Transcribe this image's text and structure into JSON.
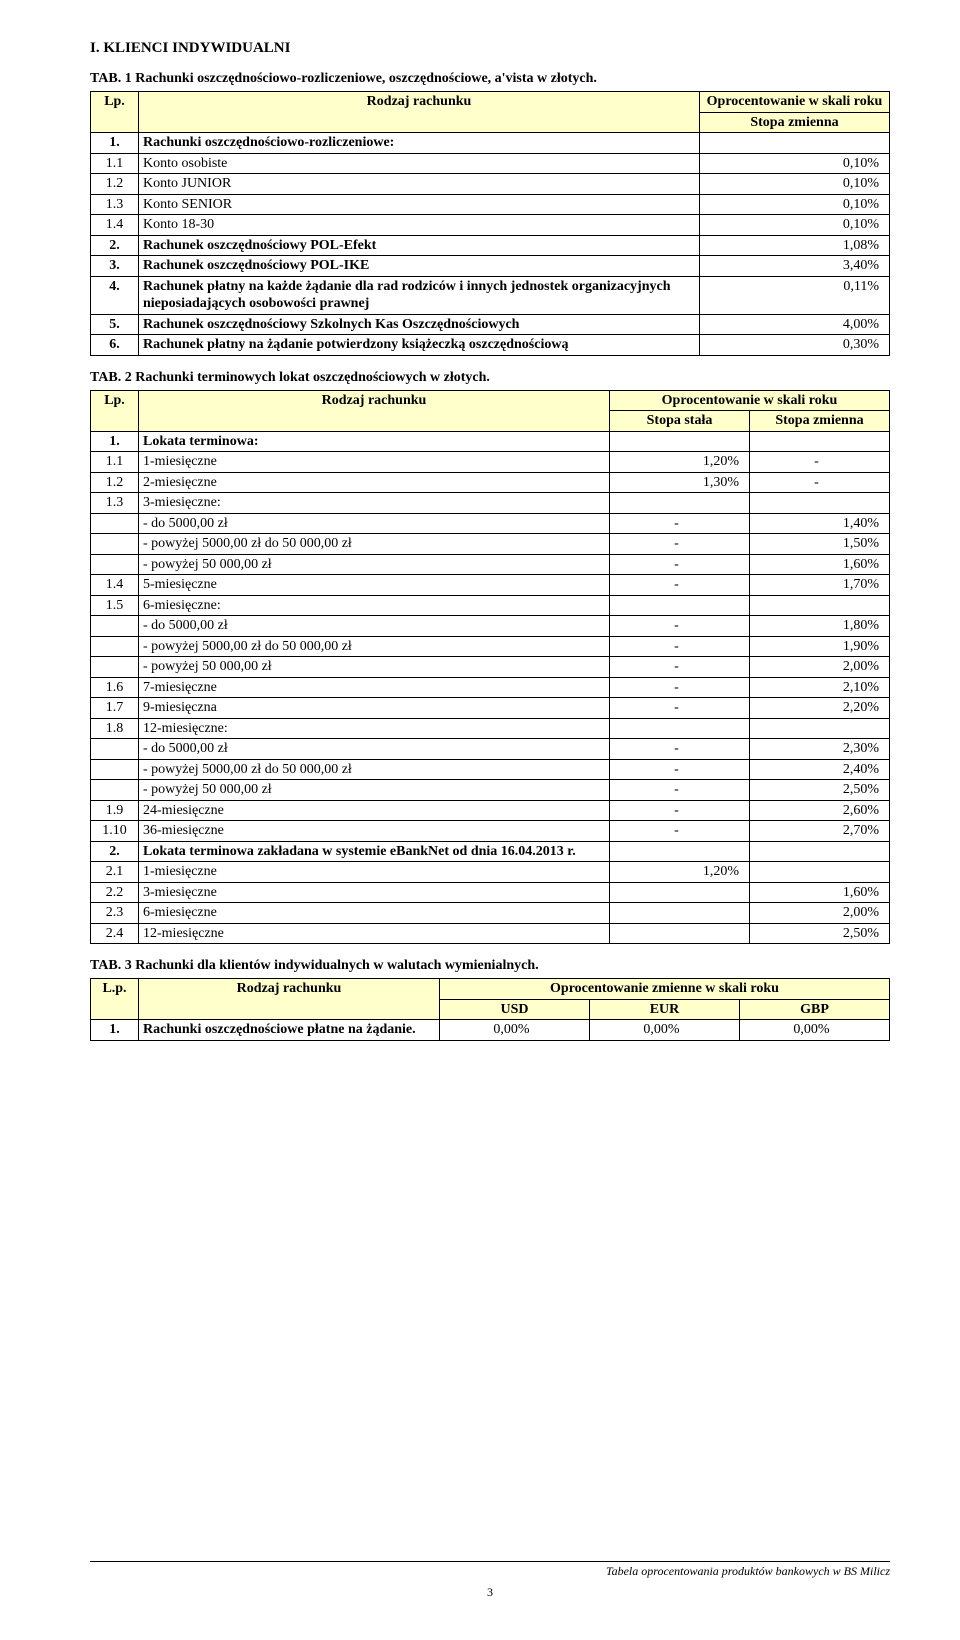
{
  "colors": {
    "headerBg": "#ffffcc",
    "border": "#000000",
    "text": "#000000",
    "pageBg": "#ffffff"
  },
  "fonts": {
    "family": "Times New Roman",
    "bodySize": 14,
    "headingSize": 15,
    "footerSize": 12
  },
  "section": "I.  KLIENCI INDYWIDUALNI",
  "table1": {
    "title": "TAB. 1 Rachunki oszczędnościowo-rozliczeniowe, oszczędnościowe, a'vista  w złotych.",
    "cols": [
      "Lp.",
      "Rodzaj rachunku"
    ],
    "rateHdr1": "Oprocentowanie w skali roku",
    "rateHdr2": "Stopa zmienna",
    "rows": [
      {
        "lp": "1.",
        "name": "Rachunki oszczędnościowo-rozliczeniowe:",
        "rate": "",
        "bold": true
      },
      {
        "lp": "1.1",
        "name": "Konto osobiste",
        "rate": "0,10%"
      },
      {
        "lp": "1.2",
        "name": "Konto JUNIOR",
        "rate": "0,10%"
      },
      {
        "lp": "1.3",
        "name": "Konto SENIOR",
        "rate": "0,10%"
      },
      {
        "lp": "1.4",
        "name": "Konto  18-30",
        "rate": "0,10%"
      },
      {
        "lp": "2.",
        "name": "Rachunek oszczędnościowy POL-Efekt",
        "rate": "1,08%",
        "bold": true
      },
      {
        "lp": "3.",
        "name": "Rachunek oszczędnościowy POL-IKE",
        "rate": "3,40%",
        "bold": true
      },
      {
        "lp": "4.",
        "name": "Rachunek płatny na każde żądanie dla rad rodziców i innych jednostek organizacyjnych nieposiadających osobowości prawnej",
        "rate": "0,11%",
        "bold": true
      },
      {
        "lp": "5.",
        "name": "Rachunek oszczędnościowy Szkolnych Kas Oszczędnościowych",
        "rate": "4,00%",
        "bold": true
      },
      {
        "lp": "6.",
        "name": "Rachunek płatny na żądanie potwierdzony książeczką oszczędnościową",
        "rate": "0,30%",
        "bold": true
      }
    ]
  },
  "table2": {
    "title": "TAB. 2 Rachunki terminowych lokat oszczędnościowych w złotych.",
    "cols": [
      "Lp.",
      "Rodzaj rachunku"
    ],
    "rateHdr1": "Oprocentowanie w skali roku",
    "subA": "Stopa stała",
    "subB": "Stopa zmienna",
    "rows": [
      {
        "lp": "1.",
        "name": "Lokata terminowa:",
        "a": "",
        "b": "",
        "bold": true
      },
      {
        "lp": "1.1",
        "name": "1-miesięczne",
        "a": "1,20%",
        "b": "-"
      },
      {
        "lp": "1.2",
        "name": "2-miesięczne",
        "a": "1,30%",
        "b": "-"
      },
      {
        "lp": "1.3",
        "name": "3-miesięczne:",
        "a": "",
        "b": ""
      },
      {
        "lp": "",
        "name": "- do 5000,00 zł",
        "a": "-",
        "b": "1,40%"
      },
      {
        "lp": "",
        "name": "- powyżej 5000,00 zł do 50 000,00 zł",
        "a": "-",
        "b": "1,50%"
      },
      {
        "lp": "",
        "name": "- powyżej 50 000,00 zł",
        "a": "-",
        "b": "1,60%"
      },
      {
        "lp": "1.4",
        "name": "5-miesięczne",
        "a": "-",
        "b": "1,70%"
      },
      {
        "lp": "1.5",
        "name": "6-miesięczne:",
        "a": "",
        "b": ""
      },
      {
        "lp": "",
        "name": "- do 5000,00 zł",
        "a": "-",
        "b": "1,80%"
      },
      {
        "lp": "",
        "name": "- powyżej 5000,00 zł do 50 000,00 zł",
        "a": "-",
        "b": "1,90%"
      },
      {
        "lp": "",
        "name": "- powyżej 50 000,00 zł",
        "a": "-",
        "b": "2,00%"
      },
      {
        "lp": "1.6",
        "name": "7-miesięczne",
        "a": "-",
        "b": "2,10%"
      },
      {
        "lp": "1.7",
        "name": "9-miesięczna",
        "a": "-",
        "b": "2,20%"
      },
      {
        "lp": "1.8",
        "name": "12-miesięczne:",
        "a": "",
        "b": ""
      },
      {
        "lp": "",
        "name": "- do 5000,00 zł",
        "a": "-",
        "b": "2,30%"
      },
      {
        "lp": "",
        "name": "- powyżej 5000,00 zł do 50 000,00 zł",
        "a": "-",
        "b": "2,40%"
      },
      {
        "lp": "",
        "name": "- powyżej 50 000,00 zł",
        "a": "-",
        "b": "2,50%"
      },
      {
        "lp": "1.9",
        "name": "24-miesięczne",
        "a": "-",
        "b": "2,60%"
      },
      {
        "lp": "1.10",
        "name": "36-miesięczne",
        "a": "-",
        "b": "2,70%"
      },
      {
        "lp": "2.",
        "name": "Lokata terminowa zakładana w systemie eBankNet od dnia 16.04.2013 r.",
        "a": "",
        "b": "",
        "bold": true
      },
      {
        "lp": "2.1",
        "name": "1-miesięczne",
        "a": "1,20%",
        "b": ""
      },
      {
        "lp": "2.2",
        "name": "3-miesięczne",
        "a": "",
        "b": "1,60%"
      },
      {
        "lp": "2.3",
        "name": "6-miesięczne",
        "a": "",
        "b": "2,00%"
      },
      {
        "lp": "2.4",
        "name": "12-miesięczne",
        "a": "",
        "b": "2,50%"
      }
    ]
  },
  "table3": {
    "title": "TAB. 3 Rachunki dla klientów indywidualnych w walutach wymienialnych.",
    "cols": [
      "L.p.",
      "Rodzaj rachunku"
    ],
    "rateHdr1": "Oprocentowanie zmienne w skali roku",
    "subs": [
      "USD",
      "EUR",
      "GBP"
    ],
    "rows": [
      {
        "lp": "1.",
        "name": "Rachunki oszczędnościowe płatne na żądanie.",
        "usd": "0,00%",
        "eur": "0,00%",
        "gbp": "0,00%",
        "bold": true
      }
    ]
  },
  "footer": "Tabela oprocentowania produktów bankowych  w BS Milicz",
  "pageNumber": "3"
}
